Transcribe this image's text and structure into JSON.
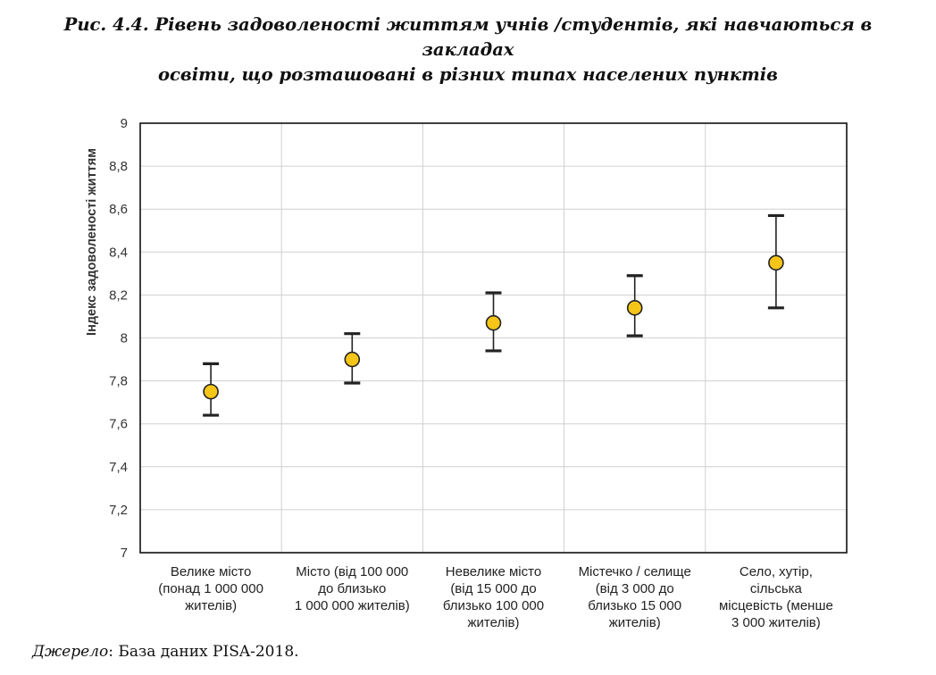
{
  "title_line1": "Рис. 4.4. Рівень задоволеності життям учнів /студентів, які навчаються в закладах",
  "title_line2": "освіти, що розташовані в різних типах населених пунктів",
  "source_label": "Джерело",
  "source_text": ": База даних PISA-2018.",
  "colors": {
    "marker": "#f5c518",
    "whisker": "#222222",
    "grid": "#d0d0d0",
    "frame": "#111111"
  },
  "chart_data": {
    "type": "scatter",
    "subtype": "point-with-error-bars",
    "ylabel": "Індекс задоволеності життям",
    "ylim": [
      7,
      9
    ],
    "yticks": [
      "7",
      "7,2",
      "7,4",
      "7,6",
      "7,8",
      "8",
      "8,2",
      "8,4",
      "8,6",
      "8,8",
      "9"
    ],
    "grid": true,
    "categories": [
      [
        "Велике місто",
        "(понад  1 000 000",
        "жителів)"
      ],
      [
        "Місто (від  100 000",
        "до близько",
        "1 000 000 жителів)"
      ],
      [
        "Невелике місто",
        "(від 15 000 до",
        "близько 100 000",
        "жителів)"
      ],
      [
        "Містечко / селище",
        "(від 3 000 до",
        "близько 15 000",
        "жителів)"
      ],
      [
        "Село, хутір,",
        "сільська",
        "місцевість (менше",
        "3 000 жителів)"
      ]
    ],
    "values": [
      7.75,
      7.9,
      8.07,
      8.14,
      8.35
    ],
    "lower": [
      7.64,
      7.79,
      7.94,
      8.01,
      8.14
    ],
    "upper": [
      7.88,
      8.02,
      8.21,
      8.29,
      8.57
    ]
  }
}
